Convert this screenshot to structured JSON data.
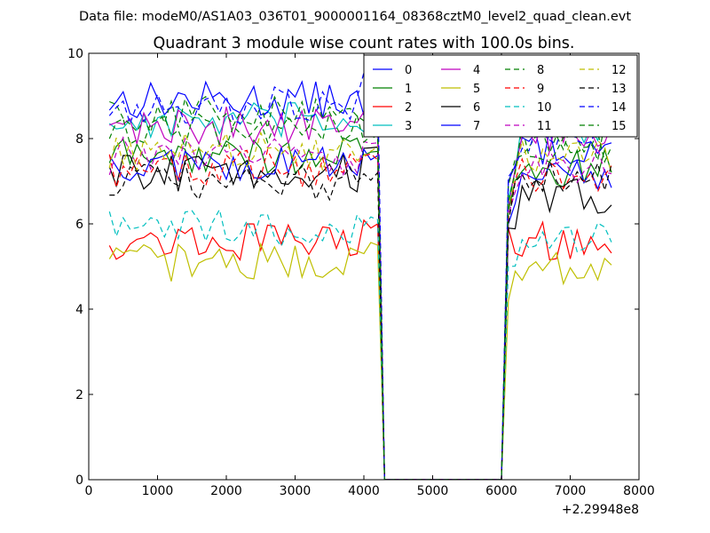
{
  "header": {
    "data_file": "Data file: modeM0/AS1A03_036T01_9000001164_08368cztM0_level2_quad_clean.evt"
  },
  "chart_data": {
    "type": "line",
    "title": "Quadrant 3 module wise count rates with 100.0s bins.",
    "xlabel": "",
    "ylabel": "",
    "x_offset_label": "+2.29948e8",
    "xlim": [
      0,
      8000
    ],
    "ylim": [
      0,
      10
    ],
    "xticks": [
      "0",
      "1000",
      "2000",
      "3000",
      "4000",
      "5000",
      "6000",
      "7000",
      "8000"
    ],
    "yticks": [
      "0",
      "2",
      "4",
      "6",
      "8",
      "10"
    ],
    "legend_position": "top-right",
    "gap": {
      "drop_start": 4200,
      "zero_start": 4300,
      "zero_end": 6000,
      "rise_end": 6100
    },
    "segment1_x": [
      300,
      3900
    ],
    "segment2_x": [
      6100,
      7600
    ],
    "series": [
      {
        "name": "0",
        "color": "#0000ff",
        "dash": "solid",
        "segment1_mean": 8.9,
        "segment2_mean": 7.8,
        "segment2_start": 7.0,
        "pre_drop": 8.4
      },
      {
        "name": "1",
        "color": "#008000",
        "dash": "solid",
        "segment1_mean": 7.6,
        "segment2_mean": 7.3,
        "segment2_start": 6.3,
        "pre_drop": 7.7
      },
      {
        "name": "2",
        "color": "#ff0000",
        "dash": "solid",
        "segment1_mean": 5.6,
        "segment2_mean": 5.6,
        "segment2_start": 5.9,
        "pre_drop": 6.0
      },
      {
        "name": "3",
        "color": "#00bfbf",
        "dash": "solid",
        "segment1_mean": 8.4,
        "segment2_mean": 8.2,
        "segment2_start": 6.6,
        "pre_drop": 8.3
      },
      {
        "name": "4",
        "color": "#bf00bf",
        "dash": "solid",
        "segment1_mean": 8.3,
        "segment2_mean": 8.1,
        "segment2_start": 6.4,
        "pre_drop": 8.6
      },
      {
        "name": "5",
        "color": "#bfbf00",
        "dash": "solid",
        "segment1_mean": 5.1,
        "segment2_mean": 5.0,
        "segment2_start": 4.2,
        "pre_drop": 5.5
      },
      {
        "name": "6",
        "color": "#000000",
        "dash": "solid",
        "segment1_mean": 7.2,
        "segment2_mean": 6.6,
        "segment2_start": 5.9,
        "pre_drop": 7.8
      },
      {
        "name": "7",
        "color": "#0000ff",
        "dash": "solid",
        "segment1_mean": 7.4,
        "segment2_mean": 7.2,
        "segment2_start": 6.0,
        "pre_drop": 7.6
      },
      {
        "name": "8",
        "color": "#008000",
        "dash": "dashed",
        "segment1_mean": 8.6,
        "segment2_mean": 7.9,
        "segment2_start": 6.9,
        "pre_drop": 8.5
      },
      {
        "name": "9",
        "color": "#ff0000",
        "dash": "dashed",
        "segment1_mean": 7.3,
        "segment2_mean": 7.2,
        "segment2_start": 6.1,
        "pre_drop": 7.5
      },
      {
        "name": "10",
        "color": "#00bfbf",
        "dash": "dashed",
        "segment1_mean": 5.9,
        "segment2_mean": 5.6,
        "segment2_start": 5.0,
        "pre_drop": 6.1
      },
      {
        "name": "11",
        "color": "#bf00bf",
        "dash": "dashed",
        "segment1_mean": 7.6,
        "segment2_mean": 7.4,
        "segment2_start": 6.2,
        "pre_drop": 7.9
      },
      {
        "name": "12",
        "color": "#bfbf00",
        "dash": "dashed",
        "segment1_mean": 7.7,
        "segment2_mean": 7.6,
        "segment2_start": 6.4,
        "pre_drop": 7.8
      },
      {
        "name": "13",
        "color": "#000000",
        "dash": "dashed",
        "segment1_mean": 7.0,
        "segment2_mean": 7.1,
        "segment2_start": 6.0,
        "pre_drop": 7.2
      },
      {
        "name": "14",
        "color": "#0000ff",
        "dash": "dashed",
        "segment1_mean": 8.8,
        "segment2_mean": 8.0,
        "segment2_start": 7.1,
        "pre_drop": 9.4
      },
      {
        "name": "15",
        "color": "#008000",
        "dash": "dashed",
        "segment1_mean": 8.2,
        "segment2_mean": 7.9,
        "segment2_start": 6.5,
        "pre_drop": 8.0
      }
    ]
  }
}
